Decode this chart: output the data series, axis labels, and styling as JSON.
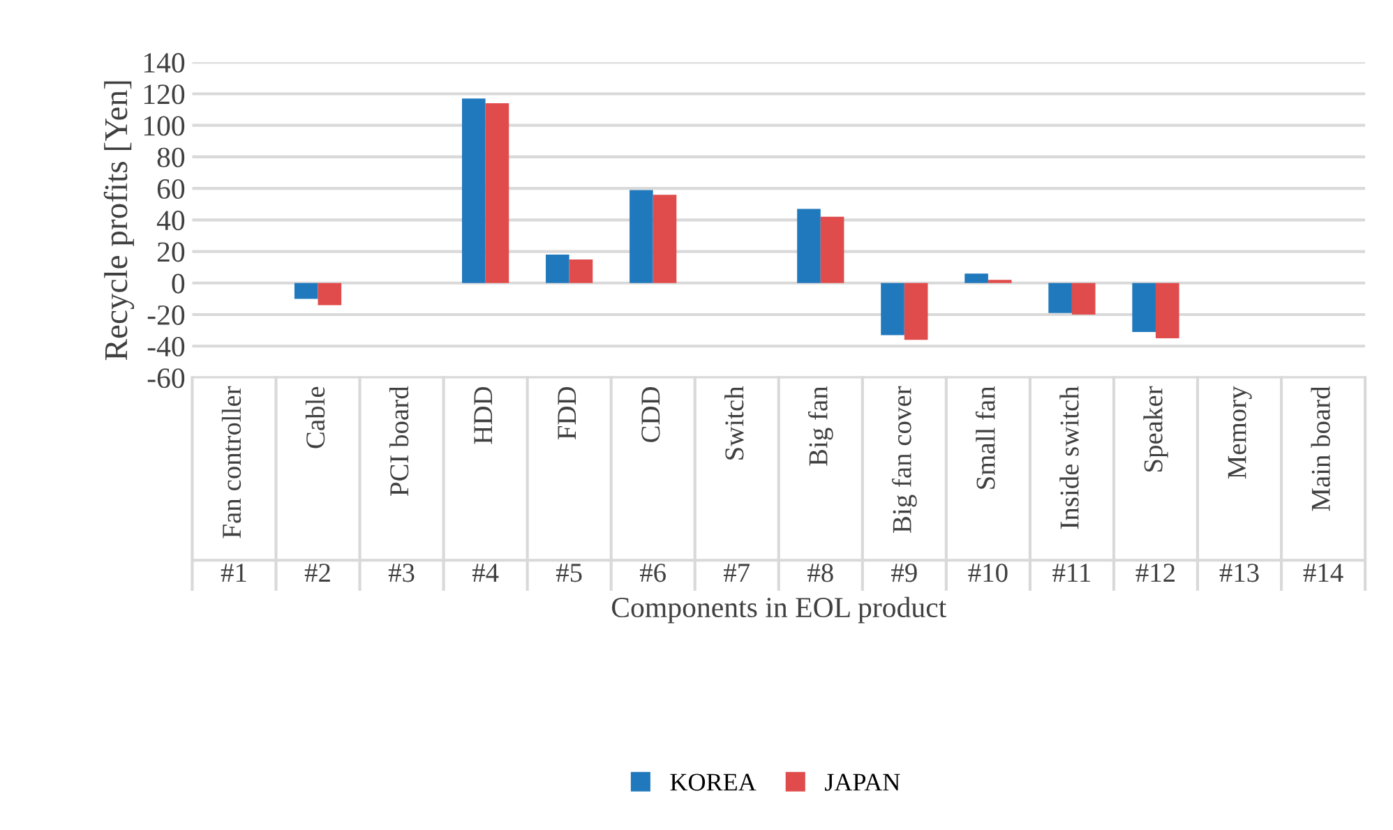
{
  "chart_data": {
    "type": "bar",
    "xlabel": "Components in EOL product",
    "ylabel": "Recycle profits [Yen]",
    "categories": [
      "Fan controller",
      "Cable",
      "PCI board",
      "HDD",
      "FDD",
      "CDD",
      "Switch",
      "Big fan",
      "Big fan cover",
      "Small fan",
      "Inside switch",
      "Speaker",
      "Memory",
      "Main board"
    ],
    "annotations": [
      "#1",
      "#2",
      "#3",
      "#4",
      "#5",
      "#6",
      "#7",
      "#8",
      "#9",
      "#10",
      "#11",
      "#12",
      "#13",
      "#14"
    ],
    "series": [
      {
        "name": "KOREA",
        "color": "#2079bd",
        "values": [
          0,
          -10,
          0,
          117,
          18,
          59,
          0,
          47,
          -33,
          6,
          -19,
          -31,
          0,
          0
        ]
      },
      {
        "name": "JAPAN",
        "color": "#e04b4b",
        "values": [
          0,
          -14,
          0,
          114,
          15,
          56,
          0,
          42,
          -36,
          2,
          -20,
          -35,
          0,
          0
        ]
      }
    ],
    "ylim": [
      -60,
      140
    ],
    "yticks": [
      -60,
      -40,
      -20,
      0,
      20,
      40,
      60,
      80,
      100,
      120,
      140
    ],
    "grid": "y",
    "legend": "bottom"
  }
}
